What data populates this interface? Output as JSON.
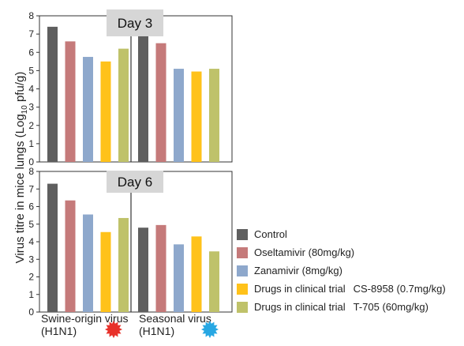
{
  "chart_data": {
    "type": "bar",
    "ylabel_main": "Virus titre in mice lungs",
    "ylabel_unit_prefix": "(Log",
    "ylabel_unit_sub": "10",
    "ylabel_unit_suffix": " pfu/g)",
    "ylim": [
      0,
      8
    ],
    "yticks": [
      "0",
      "1",
      "2",
      "3",
      "4",
      "5",
      "6",
      "7",
      "8"
    ],
    "series": [
      {
        "name": "Control",
        "color": "#5f5f5f"
      },
      {
        "name": "Oseltamivir (80mg/kg)",
        "color": "#c57a7a"
      },
      {
        "name": "Zanamivir (8mg/kg)",
        "color": "#8ea8cc"
      },
      {
        "name": "Drugs in clinical trial",
        "extra": "CS-8958 (0.7mg/kg)",
        "color": "#ffc21a"
      },
      {
        "name": "Drugs in clinical trial",
        "extra": "T-705 (60mg/kg)",
        "color": "#bfc26a"
      }
    ],
    "groups": [
      {
        "line1": "Swine-origin virus",
        "line2": "(H1N1)",
        "marker_color": "#e8312a"
      },
      {
        "line1": "Seasonal virus",
        "line2": "(H1N1)",
        "marker_color": "#27a7e3"
      }
    ],
    "panels": [
      {
        "title": "Day 3",
        "values": [
          [
            7.4,
            6.6,
            5.75,
            5.5,
            6.2
          ],
          [
            7.0,
            6.5,
            5.1,
            4.95,
            5.1
          ]
        ]
      },
      {
        "title": "Day 6",
        "values": [
          [
            7.3,
            6.35,
            5.55,
            4.55,
            5.35
          ],
          [
            4.8,
            4.95,
            3.85,
            4.3,
            3.45
          ]
        ]
      }
    ]
  }
}
